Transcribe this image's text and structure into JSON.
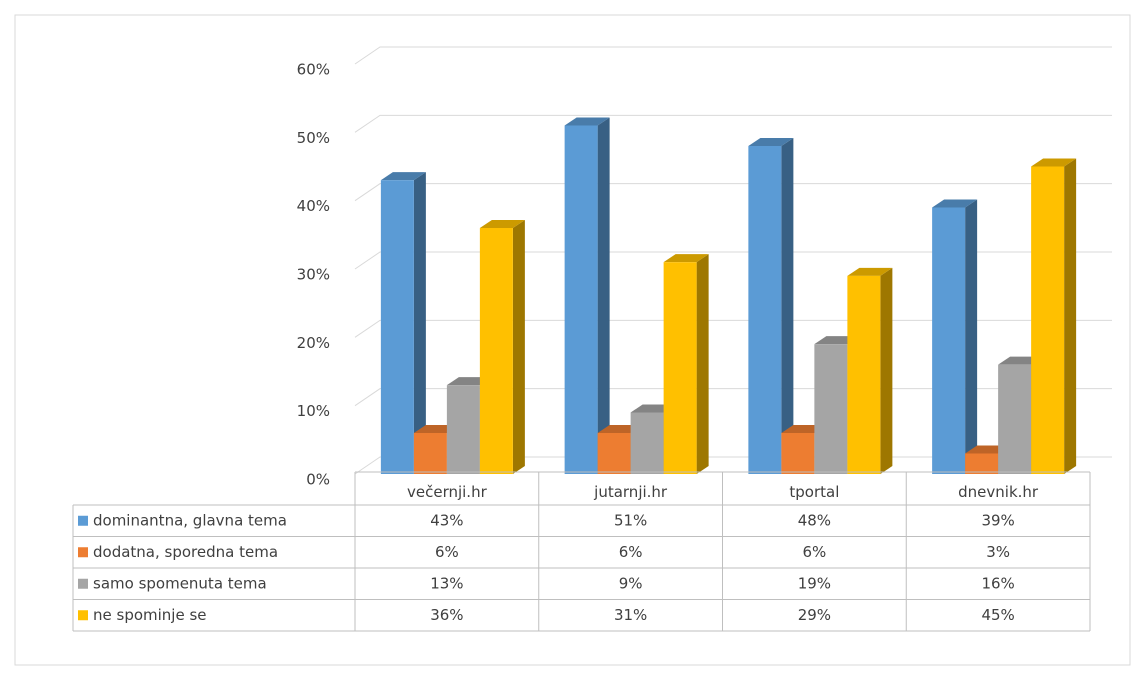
{
  "chart_data": {
    "type": "bar3d",
    "categories": [
      "večernji.hr",
      "jutarnji.hr",
      "tportal",
      "dnevnik.hr"
    ],
    "series": [
      {
        "name": "dominantna, glavna tema",
        "color": "#5b9bd5",
        "values": [
          43,
          51,
          48,
          39
        ],
        "value_labels": [
          "43%",
          "51%",
          "48%",
          "39%"
        ]
      },
      {
        "name": "dodatna, sporedna tema",
        "color": "#ed7d31",
        "values": [
          6,
          6,
          6,
          3
        ],
        "value_labels": [
          "6%",
          "6%",
          "6%",
          "3%"
        ]
      },
      {
        "name": "samo spomenuta tema",
        "color": "#a5a5a5",
        "values": [
          13,
          9,
          19,
          16
        ],
        "value_labels": [
          "13%",
          "9%",
          "19%",
          "16%"
        ]
      },
      {
        "name": "ne spominje se",
        "color": "#ffc000",
        "values": [
          36,
          31,
          29,
          45
        ],
        "value_labels": [
          "36%",
          "31%",
          "29%",
          "45%"
        ]
      }
    ],
    "ylim": [
      0,
      60
    ],
    "yticks": [
      {
        "value": 0,
        "label": "0%"
      },
      {
        "value": 10,
        "label": "10%"
      },
      {
        "value": 20,
        "label": "20%"
      },
      {
        "value": 30,
        "label": "30%"
      },
      {
        "value": 40,
        "label": "40%"
      },
      {
        "value": 50,
        "label": "50%"
      },
      {
        "value": 60,
        "label": "60%"
      }
    ],
    "grid": true
  }
}
